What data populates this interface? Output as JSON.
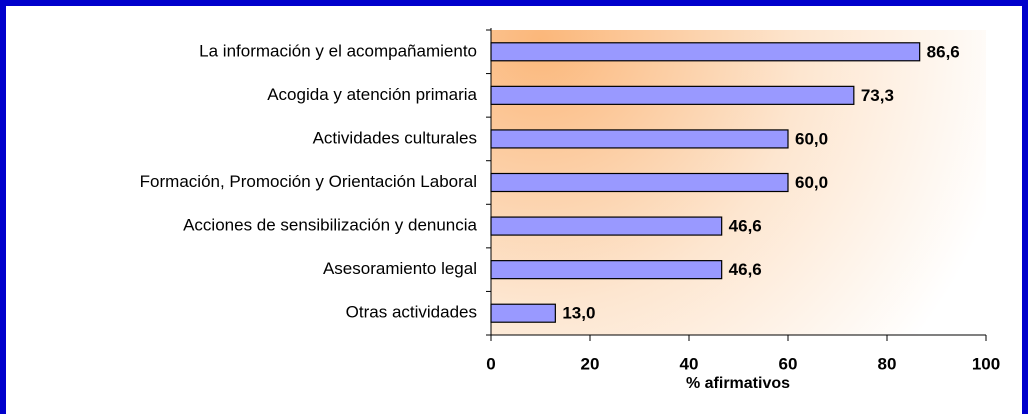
{
  "chart_data": {
    "type": "bar",
    "orientation": "horizontal",
    "categories": [
      "La información y el acompañamiento",
      "Acogida y atención primaria",
      "Actividades culturales",
      "Formación, Promoción y Orientación Laboral",
      "Acciones de sensibilización y denuncia",
      "Asesoramiento legal",
      "Otras actividades"
    ],
    "values": [
      86.6,
      73.3,
      60.0,
      60.0,
      46.6,
      46.6,
      13.0
    ],
    "value_labels": [
      "86,6",
      "73,3",
      "60,0",
      "60,0",
      "46,6",
      "46,6",
      "13,0"
    ],
    "color": "#9999ff",
    "xlim": [
      0,
      100
    ],
    "xticks": [
      0,
      20,
      40,
      60,
      80,
      100
    ],
    "xlabel": "% afirmativos"
  }
}
